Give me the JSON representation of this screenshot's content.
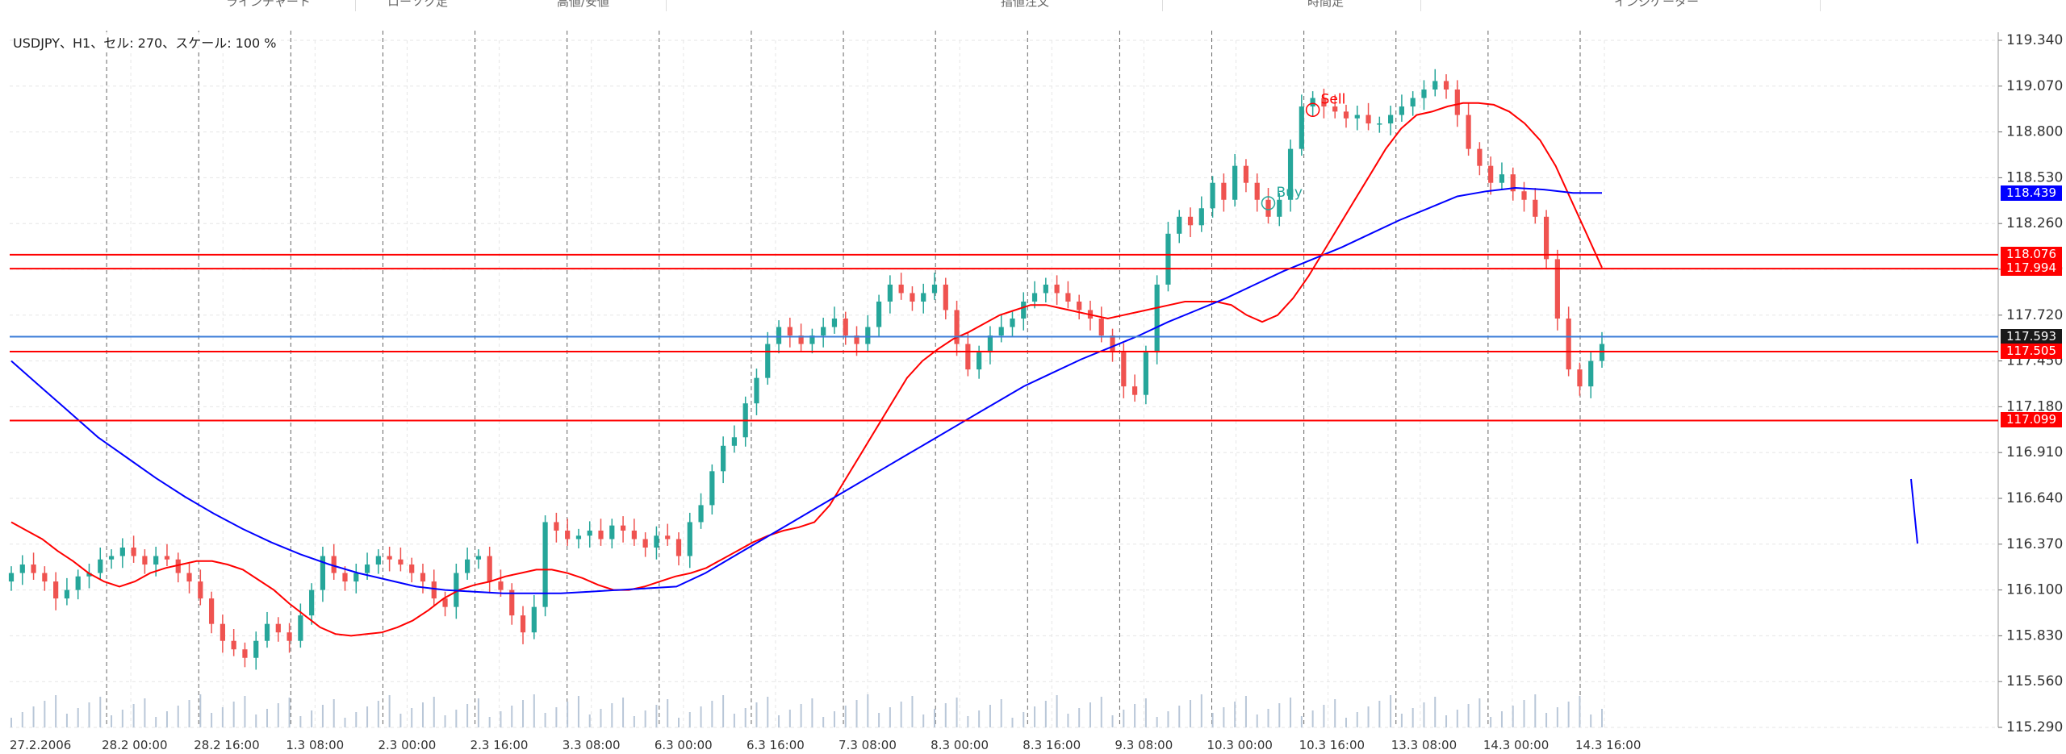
{
  "toolbar": {
    "items": [
      {
        "label": "ラインチャート"
      },
      {
        "label": "ローソク足"
      },
      {
        "label": "高値/安値"
      },
      {
        "label": "指値注文"
      },
      {
        "label": "時間足"
      },
      {
        "label": "インジケーター"
      }
    ]
  },
  "chart_info": "USDJPY、H1、セル: 270、スケール: 100 %",
  "chart_data": {
    "type": "candlestick",
    "symbol": "USDJPY",
    "timeframe": "H1",
    "ylim": [
      115.29,
      119.34
    ],
    "y_ticks": [
      "119.340",
      "119.070",
      "118.800",
      "118.530",
      "118.260",
      "117.990",
      "117.720",
      "117.450",
      "117.180",
      "116.910",
      "116.640",
      "116.370",
      "116.100",
      "115.830",
      "115.560",
      "115.290"
    ],
    "x_ticks": [
      "27.2.2006",
      "28.2 00:00",
      "28.2 16:00",
      "1.3 08:00",
      "2.3 00:00",
      "2.3 16:00",
      "3.3 08:00",
      "6.3 00:00",
      "6.3 16:00",
      "7.3 08:00",
      "8.3 00:00",
      "8.3 16:00",
      "9.3 08:00",
      "10.3 00:00",
      "10.3 16:00",
      "13.3 08:00",
      "14.3 00:00",
      "14.3 16:00"
    ],
    "closes": [
      116.2,
      116.25,
      116.2,
      116.15,
      116.05,
      116.1,
      116.18,
      116.2,
      116.28,
      116.3,
      116.35,
      116.3,
      116.25,
      116.3,
      116.28,
      116.2,
      116.15,
      116.05,
      115.9,
      115.8,
      115.75,
      115.7,
      115.8,
      115.9,
      115.85,
      115.8,
      115.95,
      116.1,
      116.3,
      116.2,
      116.15,
      116.2,
      116.25,
      116.3,
      116.28,
      116.25,
      116.2,
      116.15,
      116.05,
      116.0,
      116.2,
      116.28,
      116.3,
      116.15,
      116.1,
      115.95,
      115.85,
      116.0,
      116.5,
      116.45,
      116.4,
      116.42,
      116.45,
      116.4,
      116.48,
      116.45,
      116.4,
      116.35,
      116.42,
      116.4,
      116.3,
      116.5,
      116.6,
      116.8,
      116.95,
      117.0,
      117.2,
      117.35,
      117.55,
      117.65,
      117.6,
      117.55,
      117.6,
      117.65,
      117.7,
      117.6,
      117.55,
      117.65,
      117.8,
      117.9,
      117.85,
      117.8,
      117.85,
      117.9,
      117.75,
      117.55,
      117.4,
      117.5,
      117.6,
      117.65,
      117.7,
      117.8,
      117.85,
      117.9,
      117.85,
      117.8,
      117.75,
      117.7,
      117.6,
      117.5,
      117.3,
      117.25,
      117.5,
      117.9,
      118.2,
      118.3,
      118.25,
      118.35,
      118.5,
      118.4,
      118.6,
      118.5,
      118.4,
      118.3,
      118.4,
      118.7,
      118.95,
      119.0,
      118.95,
      118.92,
      118.88,
      118.9,
      118.85,
      118.85,
      118.9,
      118.95,
      119.0,
      119.05,
      119.1,
      119.05,
      118.9,
      118.7,
      118.6,
      118.5,
      118.55,
      118.45,
      118.4,
      118.3,
      118.05,
      117.7,
      117.4,
      117.3,
      117.45,
      117.55
    ],
    "series": [
      {
        "name": "",
        "color": "#ff0000",
        "values": [
          116.5,
          116.45,
          116.4,
          116.33,
          116.27,
          116.2,
          116.15,
          116.12,
          116.15,
          116.2,
          116.23,
          116.25,
          116.27,
          116.27,
          116.25,
          116.22,
          116.16,
          116.1,
          116.02,
          115.95,
          115.88,
          115.84,
          115.83,
          115.84,
          115.85,
          115.88,
          115.92,
          115.98,
          116.05,
          116.1,
          116.13,
          116.15,
          116.18,
          116.2,
          116.22,
          116.22,
          116.2,
          116.17,
          116.13,
          116.1,
          116.1,
          116.12,
          116.15,
          116.18,
          116.2,
          116.23,
          116.28,
          116.33,
          116.38,
          116.42,
          116.45,
          116.47,
          116.5,
          116.6,
          116.75,
          116.9,
          117.05,
          117.2,
          117.35,
          117.45,
          117.52,
          117.58,
          117.62,
          117.67,
          117.72,
          117.75,
          117.78,
          117.78,
          117.76,
          117.74,
          117.72,
          117.7,
          117.72,
          117.74,
          117.76,
          117.78,
          117.8,
          117.8,
          117.8,
          117.78,
          117.72,
          117.68,
          117.72,
          117.82,
          117.95,
          118.1,
          118.25,
          118.4,
          118.55,
          118.7,
          118.82,
          118.9,
          118.92,
          118.95,
          118.97,
          118.97,
          118.96,
          118.92,
          118.85,
          118.75,
          118.6,
          118.4,
          118.2,
          118.0
        ]
      },
      {
        "name": "",
        "color": "#0000ff",
        "values": [
          117.45,
          117.3,
          117.15,
          117.0,
          116.88,
          116.76,
          116.65,
          116.55,
          116.46,
          116.38,
          116.31,
          116.25,
          116.2,
          116.16,
          116.12,
          116.1,
          116.09,
          116.08,
          116.08,
          116.08,
          116.09,
          116.1,
          116.11,
          116.12,
          116.2,
          116.3,
          116.4,
          116.5,
          116.6,
          116.7,
          116.8,
          116.9,
          117.0,
          117.1,
          117.2,
          117.3,
          117.38,
          117.46,
          117.53,
          117.6,
          117.68,
          117.75,
          117.82,
          117.9,
          117.98,
          118.05,
          118.12,
          118.2,
          118.28,
          118.35,
          118.42,
          118.45,
          118.47,
          118.46,
          118.44,
          118.44
        ]
      }
    ],
    "horizontal_levels": [
      {
        "value": 118.076,
        "color": "#ff0000"
      },
      {
        "value": 117.994,
        "color": "#ff0000"
      },
      {
        "value": 117.593,
        "color": "#3b7dd8"
      },
      {
        "value": 117.505,
        "color": "#ff0000"
      },
      {
        "value": 117.099,
        "color": "#ff0000"
      }
    ],
    "price_labels": [
      {
        "text": "118.439",
        "value": 118.439,
        "bg": "#0000ff"
      },
      {
        "text": "118.076",
        "value": 118.076,
        "bg": "#ff0000"
      },
      {
        "text": "117.994",
        "value": 117.994,
        "bg": "#ff0000"
      },
      {
        "text": "117.593",
        "value": 117.593,
        "bg": "#1a1a1a"
      },
      {
        "text": "117.505",
        "value": 117.505,
        "bg": "#ff0000"
      },
      {
        "text": "117.099",
        "value": 117.099,
        "bg": "#ff0000"
      }
    ],
    "markers": [
      {
        "label": "Sell",
        "color": "#ff0000",
        "value": 118.93
      },
      {
        "label": "Buy",
        "color": "#26a69a",
        "value": 118.38
      }
    ],
    "colors": {
      "bull": "#26a69a",
      "bear": "#ef5350",
      "grid": "#e6e6e6",
      "session": "#666666"
    }
  }
}
